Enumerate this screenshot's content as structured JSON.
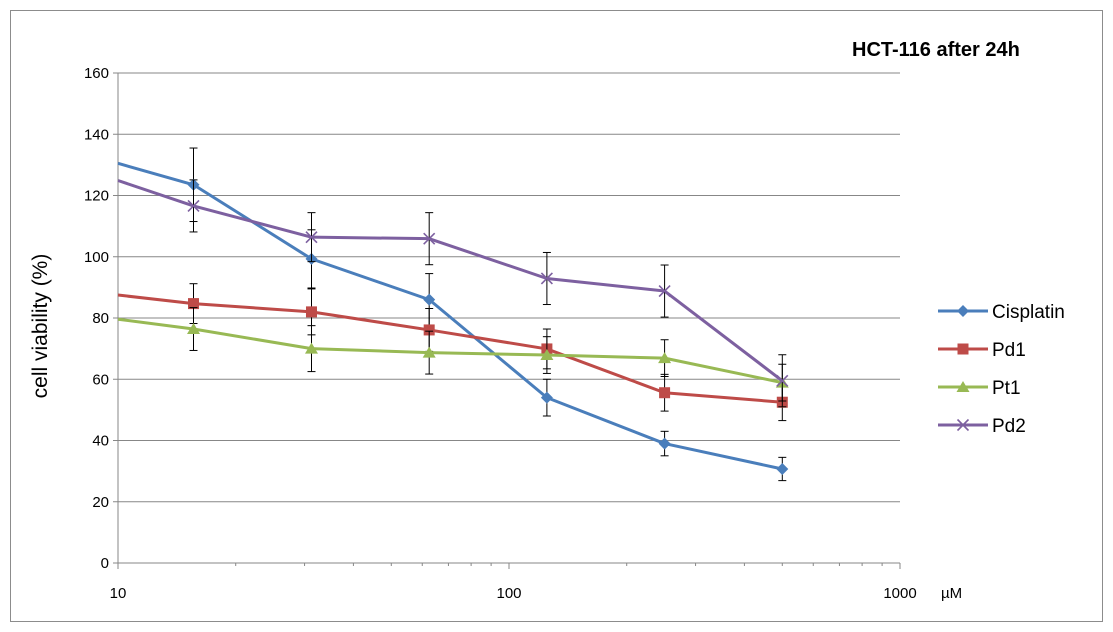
{
  "chart_data": {
    "type": "line",
    "title": "HCT-116 after 24h",
    "xlabel": "µM",
    "ylabel": "cell viability (%)",
    "x_scale": "log",
    "xlim": [
      10,
      1000
    ],
    "ylim": [
      0,
      160
    ],
    "x_ticks": [
      "10",
      "100",
      "1000"
    ],
    "y_ticks": [
      "0",
      "20",
      "40",
      "60",
      "80",
      "100",
      "120",
      "140",
      "160"
    ],
    "grid": "horizontal",
    "legend_position": "right",
    "series": [
      {
        "name": "Cisplatin",
        "color": "#4A7EBB",
        "marker": "diamond",
        "start": [
          10,
          130.5
        ],
        "x": [
          15.6,
          31.25,
          62.5,
          125,
          250,
          500
        ],
        "y": [
          123.5,
          99.3,
          86.0,
          54.0,
          39.0,
          30.7
        ],
        "err": [
          12.0,
          9.5,
          8.5,
          6.0,
          4.0,
          3.8
        ]
      },
      {
        "name": "Pd1",
        "color": "#BE4B48",
        "marker": "square",
        "start": [
          10,
          87.5
        ],
        "x": [
          15.6,
          31.25,
          62.5,
          125,
          250,
          500
        ],
        "y": [
          84.7,
          82.0,
          76.1,
          69.9,
          55.6,
          52.5
        ],
        "err": [
          6.5,
          7.5,
          7.0,
          6.5,
          6.0,
          6.0
        ]
      },
      {
        "name": "Pt1",
        "color": "#98B954",
        "marker": "triangle",
        "start": [
          10,
          79.6
        ],
        "x": [
          15.6,
          31.25,
          62.5,
          125,
          250,
          500
        ],
        "y": [
          76.4,
          70.0,
          68.7,
          67.9,
          66.9,
          58.9
        ],
        "err": [
          7.0,
          7.5,
          7.0,
          6.0,
          6.0,
          6.0
        ]
      },
      {
        "name": "Pd2",
        "color": "#7D60A0",
        "marker": "x",
        "start": [
          10,
          124.9
        ],
        "x": [
          15.6,
          31.25,
          62.5,
          125,
          250,
          500
        ],
        "y": [
          116.6,
          106.4,
          105.9,
          92.9,
          88.8,
          59.5
        ],
        "err": [
          8.5,
          8.0,
          8.5,
          8.5,
          8.5,
          8.5
        ]
      }
    ]
  }
}
